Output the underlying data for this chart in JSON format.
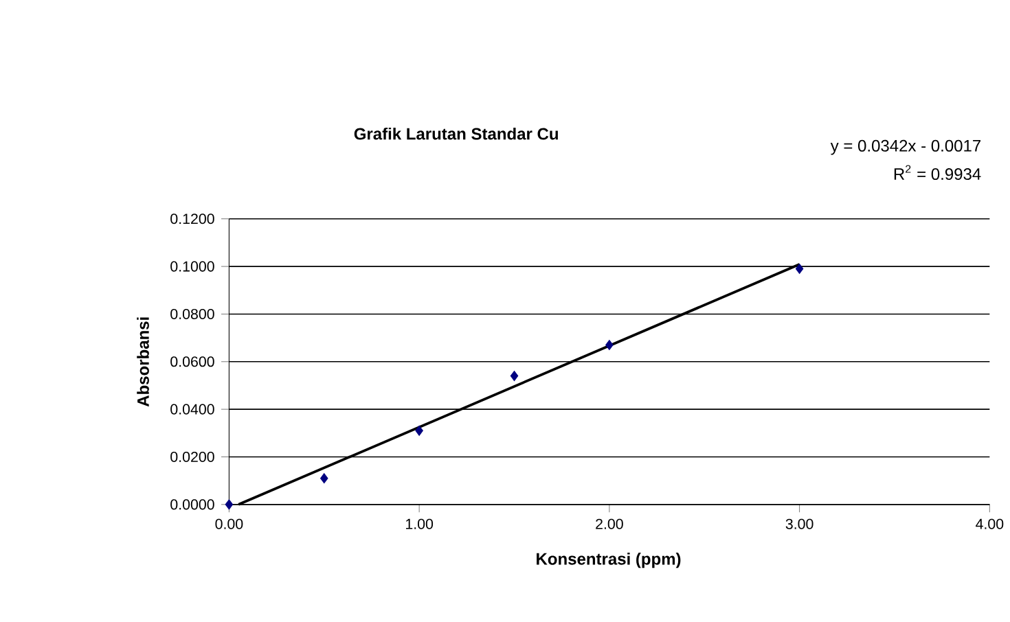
{
  "chart_data": {
    "type": "scatter",
    "title": "Grafik Larutan Standar Cu",
    "xlabel": "Konsentrasi (ppm)",
    "ylabel": "Absorbansi",
    "annotations": [
      "y = 0.0342x - 0.0017",
      "R$^{2}$ = 0.9934"
    ],
    "series": [
      {
        "color": "#000080",
        "marker": "diamond",
        "x": [
          0,
          0.5,
          1,
          1.5,
          2,
          3
        ],
        "values": [
          0,
          0.011,
          0.031,
          0.054,
          0.067,
          0.099
        ]
      },
      {
        "type": "line",
        "color": "#000000",
        "marker": "none",
        "line_style": "solid",
        "x": [
          0.05,
          3
        ],
        "values": [
          0,
          0.1009
        ]
      }
    ],
    "xlim": [
      0,
      4
    ],
    "ylim": [
      0,
      0.12
    ],
    "xticks": [
      {
        "value": 0,
        "label": "0.00"
      },
      {
        "value": 1,
        "label": "1.00"
      },
      {
        "value": 2,
        "label": "2.00"
      },
      {
        "value": 3,
        "label": "3.00"
      },
      {
        "value": 4,
        "label": "4.00"
      }
    ],
    "yticks": [
      {
        "value": 0,
        "label": "0.0000"
      },
      {
        "value": 0.02,
        "label": "0.0200"
      },
      {
        "value": 0.04,
        "label": "0.0400"
      },
      {
        "value": 0.06,
        "label": "0.0600"
      },
      {
        "value": 0.08,
        "label": "0.0800"
      },
      {
        "value": 0.1,
        "label": "0.1000"
      },
      {
        "value": 0.12,
        "label": "0.1200"
      }
    ],
    "grid": "y"
  }
}
